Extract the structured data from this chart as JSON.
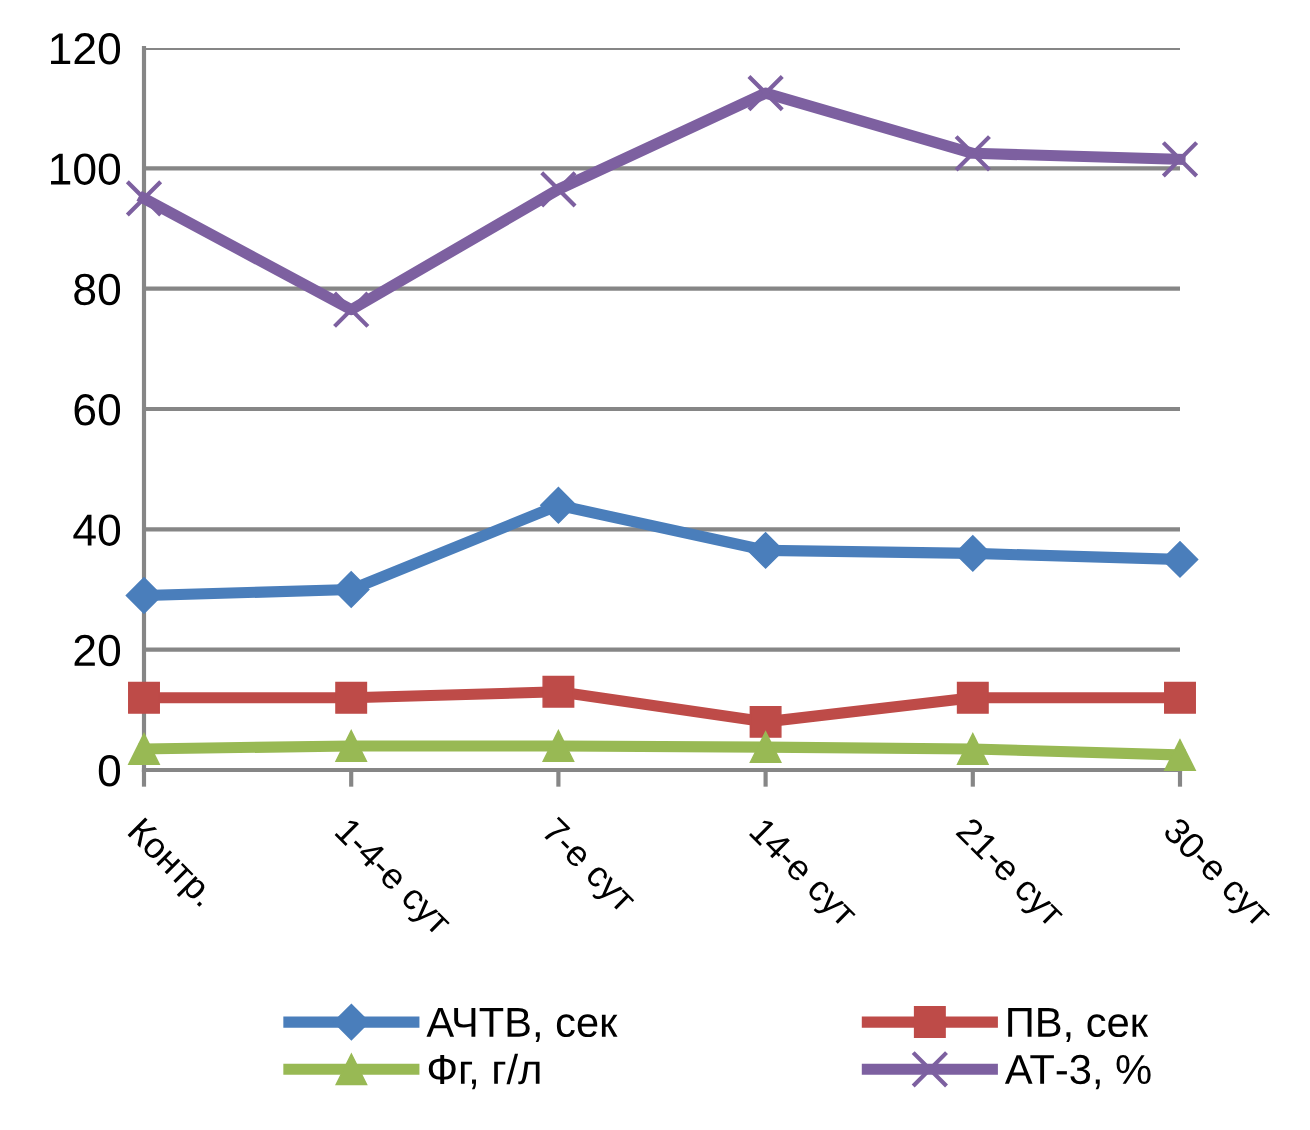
{
  "chart_data": {
    "type": "line",
    "categories": [
      "Контр.",
      "1-4-е сут",
      "7-е сут",
      "14-е сут",
      "21-е сут",
      "30-е сут"
    ],
    "series": [
      {
        "name": "АЧТВ, сек",
        "color": "#4a7ebb",
        "marker": "diamond",
        "values": [
          29,
          30,
          44,
          36.5,
          36,
          35
        ]
      },
      {
        "name": "ПВ, сек",
        "color": "#be4b48",
        "marker": "square",
        "values": [
          12,
          12,
          13,
          8,
          12,
          12
        ]
      },
      {
        "name": "Фг, г/л",
        "color": "#98b954",
        "marker": "triangle",
        "values": [
          3.5,
          4,
          4,
          3.8,
          3.5,
          2.5
        ]
      },
      {
        "name": "АТ-3, %",
        "color": "#7d60a0",
        "marker": "cross",
        "values": [
          95,
          76.5,
          96.5,
          112.5,
          102.5,
          101.5
        ]
      }
    ],
    "ylim": [
      0,
      120
    ],
    "yticks": [
      0,
      20,
      40,
      60,
      80,
      100,
      120
    ],
    "grid": "y",
    "legend": "bottom",
    "line_style": "solid"
  }
}
